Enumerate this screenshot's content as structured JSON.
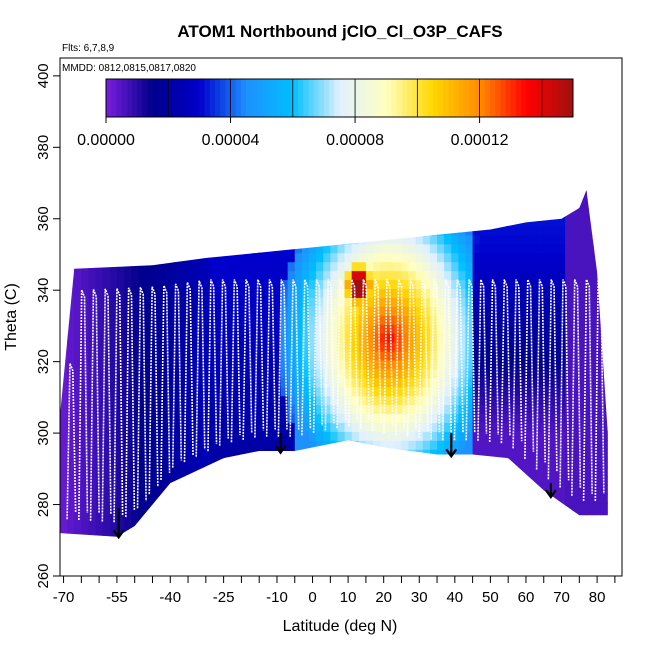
{
  "chart_data": {
    "type": "heatmap",
    "title": "ATOM1 Northbound jClO_Cl_O3P_CAFS",
    "subtitle_flights": "Flts: 6,7,8,9",
    "subtitle_dates": "MMDD: 0812,0815,0817,0820",
    "xlabel": "Latitude (deg N)",
    "ylabel": "Theta (C)",
    "xlim": [
      -71,
      87
    ],
    "ylim": [
      260,
      405
    ],
    "x_tick_labels": [
      "-70",
      "-55",
      "-40",
      "-25",
      "-10",
      "0",
      "10",
      "20",
      "30",
      "40",
      "50",
      "60",
      "70",
      "80"
    ],
    "x_tick_values": [
      -70,
      -55,
      -40,
      -25,
      -10,
      0,
      10,
      20,
      30,
      40,
      50,
      60,
      70,
      80
    ],
    "x_minor_step": 5,
    "y_tick_labels": [
      "260",
      "280",
      "300",
      "320",
      "340",
      "360",
      "380",
      "400"
    ],
    "y_tick_values": [
      260,
      280,
      300,
      320,
      340,
      360,
      380,
      400
    ],
    "colorbar": {
      "min": 0,
      "max": 0.00015,
      "tick_labels": [
        "0.00000",
        "0.00004",
        "0.00008",
        "0.00012"
      ],
      "tick_values": [
        0,
        4e-05,
        8e-05,
        0.00012
      ],
      "colors": [
        "#7a1fe0",
        "#00008b",
        "#0000cd",
        "#1e90ff",
        "#00bfff",
        "#e0f0ff",
        "#ffffc0",
        "#ffd700",
        "#ff8c00",
        "#ff0000",
        "#a01010"
      ]
    },
    "ground_boundary_theta": [
      [
        -71,
        272
      ],
      [
        -55,
        271
      ],
      [
        -50,
        274
      ],
      [
        -40,
        286
      ],
      [
        -25,
        293
      ],
      [
        -15,
        295
      ],
      [
        -5,
        295
      ],
      [
        10,
        298
      ],
      [
        20,
        296
      ],
      [
        35,
        294
      ],
      [
        45,
        294
      ],
      [
        55,
        293
      ],
      [
        65,
        284
      ],
      [
        75,
        277
      ],
      [
        83,
        277
      ]
    ],
    "top_boundary_theta": [
      [
        -71,
        305
      ],
      [
        -67,
        346
      ],
      [
        -45,
        347
      ],
      [
        -30,
        349
      ],
      [
        -20,
        350
      ],
      [
        -10,
        351
      ],
      [
        0,
        352
      ],
      [
        10,
        353
      ],
      [
        20,
        354
      ],
      [
        30,
        355
      ],
      [
        40,
        356
      ],
      [
        50,
        357
      ],
      [
        60,
        359
      ],
      [
        70,
        360
      ],
      [
        75,
        363
      ],
      [
        77,
        368
      ],
      [
        80,
        345
      ],
      [
        83,
        300
      ]
    ],
    "high_value_region": {
      "lat": [
        8,
        35
      ],
      "theta": [
        305,
        348
      ],
      "peak_lat": [
        10,
        16
      ],
      "peak_theta": [
        335,
        348
      ]
    },
    "arrows_lat": [
      -54.5,
      -9,
      39,
      67
    ],
    "arrows_theta_tail": [
      279,
      300,
      300,
      286
    ],
    "flight_tracks_visible": true
  }
}
